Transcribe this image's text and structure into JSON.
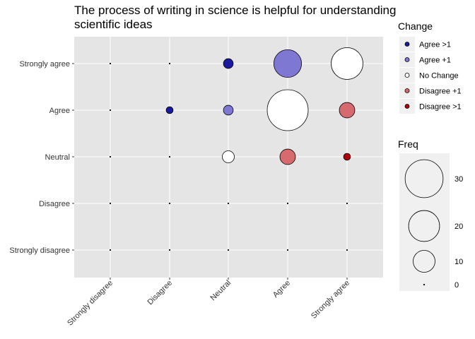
{
  "chart_data": {
    "type": "scatter",
    "title_line1": "The process of writing in science is helpful for understanding",
    "title_line2": "scientific ideas",
    "x_categories": [
      "Strongly disagree",
      "Disagree",
      "Neutral",
      "Agree",
      "Strongly agree"
    ],
    "y_categories": [
      "Strongly disagree",
      "Disagree",
      "Neutral",
      "Agree",
      "Strongly agree"
    ],
    "xlabel": "",
    "ylabel": "",
    "grid": true,
    "legend_position": "right",
    "points": [
      {
        "x": "Strongly disagree",
        "y": "Strongly agree",
        "freq": 0,
        "change": "Agree >1"
      },
      {
        "x": "Disagree",
        "y": "Strongly agree",
        "freq": 0,
        "change": "Agree >1"
      },
      {
        "x": "Neutral",
        "y": "Strongly agree",
        "freq": 2,
        "change": "Agree >1"
      },
      {
        "x": "Agree",
        "y": "Strongly agree",
        "freq": 16,
        "change": "Agree +1"
      },
      {
        "x": "Strongly agree",
        "y": "Strongly agree",
        "freq": 21,
        "change": "No Change"
      },
      {
        "x": "Strongly disagree",
        "y": "Agree",
        "freq": 0,
        "change": "Agree >1"
      },
      {
        "x": "Disagree",
        "y": "Agree",
        "freq": 1,
        "change": "Agree >1"
      },
      {
        "x": "Neutral",
        "y": "Agree",
        "freq": 2,
        "change": "Agree +1"
      },
      {
        "x": "Agree",
        "y": "Agree",
        "freq": 35,
        "change": "No Change"
      },
      {
        "x": "Strongly agree",
        "y": "Agree",
        "freq": 5,
        "change": "Disagree +1"
      },
      {
        "x": "Strongly disagree",
        "y": "Neutral",
        "freq": 0,
        "change": "Agree >1"
      },
      {
        "x": "Disagree",
        "y": "Neutral",
        "freq": 0,
        "change": "Agree +1"
      },
      {
        "x": "Neutral",
        "y": "Neutral",
        "freq": 3,
        "change": "No Change"
      },
      {
        "x": "Agree",
        "y": "Neutral",
        "freq": 5,
        "change": "Disagree +1"
      },
      {
        "x": "Strongly agree",
        "y": "Neutral",
        "freq": 1,
        "change": "Disagree >1"
      },
      {
        "x": "Strongly disagree",
        "y": "Disagree",
        "freq": 0,
        "change": "Agree +1"
      },
      {
        "x": "Disagree",
        "y": "Disagree",
        "freq": 0,
        "change": "No Change"
      },
      {
        "x": "Neutral",
        "y": "Disagree",
        "freq": 0,
        "change": "Disagree +1"
      },
      {
        "x": "Agree",
        "y": "Disagree",
        "freq": 0,
        "change": "Disagree >1"
      },
      {
        "x": "Strongly agree",
        "y": "Disagree",
        "freq": 0,
        "change": "Disagree >1"
      },
      {
        "x": "Strongly disagree",
        "y": "Strongly disagree",
        "freq": 0,
        "change": "No Change"
      },
      {
        "x": "Disagree",
        "y": "Strongly disagree",
        "freq": 0,
        "change": "Disagree +1"
      },
      {
        "x": "Neutral",
        "y": "Strongly disagree",
        "freq": 0,
        "change": "Disagree >1"
      },
      {
        "x": "Agree",
        "y": "Strongly disagree",
        "freq": 0,
        "change": "Disagree >1"
      },
      {
        "x": "Strongly agree",
        "y": "Strongly disagree",
        "freq": 0,
        "change": "Disagree >1"
      }
    ],
    "legend_change": {
      "title": "Change",
      "items": [
        {
          "label": "Agree >1",
          "color": "#1a1a9e"
        },
        {
          "label": "Agree +1",
          "color": "#7e78d2"
        },
        {
          "label": "No Change",
          "color": "#ffffff"
        },
        {
          "label": "Disagree +1",
          "color": "#d66a6e"
        },
        {
          "label": "Disagree >1",
          "color": "#b2000a"
        }
      ]
    },
    "legend_freq": {
      "title": "Freq",
      "breaks": [
        30,
        20,
        10,
        0
      ]
    },
    "colors": {
      "panel_background": "#e5e5e5",
      "grid_line": "#ffffff",
      "legend_key_background": "#f0f0f0",
      "point_outline": "#000000"
    }
  }
}
